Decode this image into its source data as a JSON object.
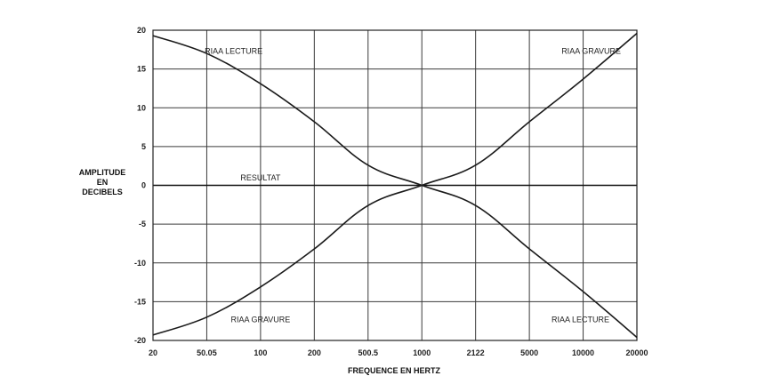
{
  "chart_data": {
    "type": "line",
    "title": "",
    "xlabel": "FREQUENCE EN HERTZ",
    "ylabel_lines": [
      "AMPLITUDE",
      "EN",
      "DECIBELS"
    ],
    "categories": [
      "20",
      "50.05",
      "100",
      "200",
      "500.5",
      "1000",
      "2122",
      "5000",
      "10000",
      "20000"
    ],
    "yticks": [
      20,
      15,
      10,
      5,
      0,
      -5,
      -10,
      -15,
      -20
    ],
    "ylim": [
      -20,
      20
    ],
    "grid": true,
    "series": [
      {
        "name": "RIAA LECTURE",
        "values": [
          19.3,
          17.0,
          13.1,
          8.2,
          2.6,
          0.0,
          -2.6,
          -8.2,
          -13.7,
          -19.6
        ]
      },
      {
        "name": "RIAA GRAVURE",
        "values": [
          -19.3,
          -17.0,
          -13.1,
          -8.2,
          -2.6,
          0.0,
          2.6,
          8.2,
          13.7,
          19.6
        ]
      },
      {
        "name": "RESULTAT",
        "values": [
          0,
          0,
          0,
          0,
          0,
          0,
          0,
          0,
          0,
          0
        ]
      }
    ],
    "annotations": [
      {
        "text": "RIAA LECTURE",
        "x": 1.5,
        "y": 17.3
      },
      {
        "text": "RIAA GRAVURE",
        "x": 8.15,
        "y": 17.3
      },
      {
        "text": "RESULTAT",
        "x": 2.0,
        "y": 1.0
      },
      {
        "text": "RIAA GRAVURE",
        "x": 2.0,
        "y": -17.3
      },
      {
        "text": "RIAA LECTURE",
        "x": 7.95,
        "y": -17.3
      }
    ]
  }
}
